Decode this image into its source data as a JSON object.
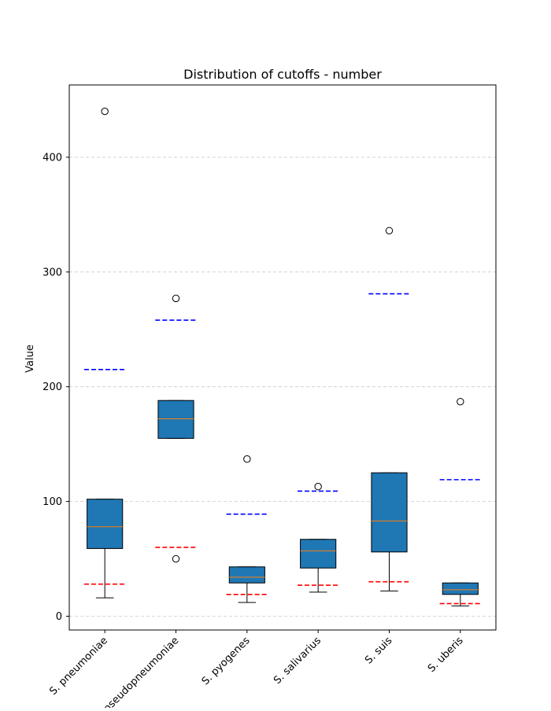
{
  "chart_data": {
    "type": "box",
    "title": "Distribution of cutoffs - number",
    "xlabel": "",
    "ylabel": "Value",
    "ylim": [
      -12,
      463
    ],
    "yticks": [
      0,
      100,
      200,
      300,
      400
    ],
    "grid": "horizontal dashed",
    "categories": [
      "S. pneumoniae",
      "S. pseudopneumoniae",
      "S. pyogenes",
      "S. salivarius",
      "S. suis",
      "S. uberis"
    ],
    "boxes": [
      {
        "whisker_low": 16,
        "q1": 59,
        "median": 78,
        "q3": 102,
        "whisker_high": 102,
        "outliers": [
          440
        ]
      },
      {
        "whisker_low": 155,
        "q1": 155,
        "median": 172,
        "q3": 188,
        "whisker_high": 188,
        "outliers": [
          277,
          50
        ]
      },
      {
        "whisker_low": 12,
        "q1": 29,
        "median": 34,
        "q3": 43,
        "whisker_high": 43,
        "outliers": [
          137
        ]
      },
      {
        "whisker_low": 21,
        "q1": 42,
        "median": 57,
        "q3": 67,
        "whisker_high": 67,
        "outliers": [
          113
        ]
      },
      {
        "whisker_low": 22,
        "q1": 56,
        "median": 83,
        "q3": 125,
        "whisker_high": 125,
        "outliers": [
          336
        ]
      },
      {
        "whisker_low": 9,
        "q1": 19,
        "median": 23,
        "q3": 29,
        "whisker_high": 29,
        "outliers": [
          187
        ]
      }
    ],
    "reference_lines": {
      "upper": {
        "color": "#0000ff",
        "values": [
          215,
          258,
          89,
          109,
          281,
          119
        ]
      },
      "lower": {
        "color": "#ff0000",
        "values": [
          28,
          60,
          19,
          27,
          30,
          11
        ]
      }
    },
    "colors": {
      "box_fill": "#1f77b4",
      "median": "#ff7f0e",
      "grid": "#cccccc"
    }
  }
}
